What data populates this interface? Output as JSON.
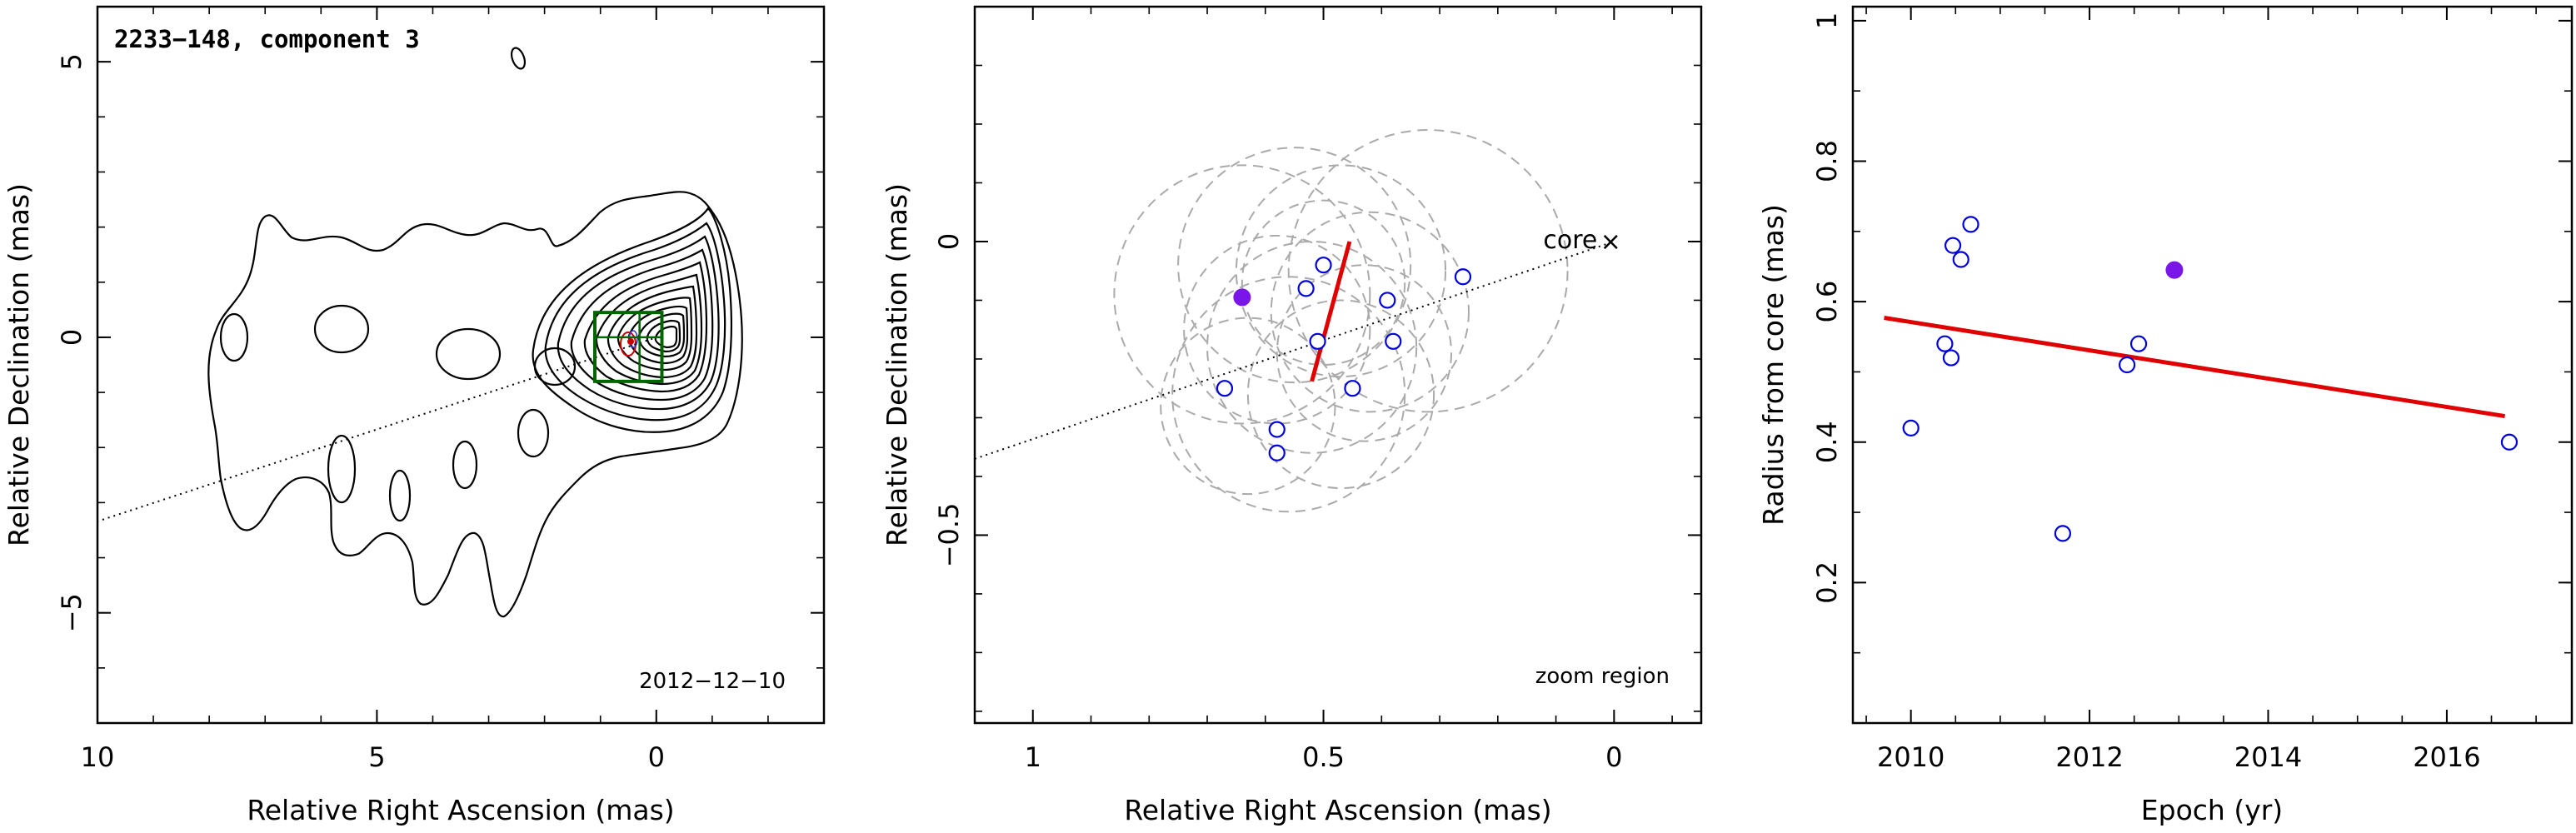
{
  "chart_data": [
    {
      "type": "contour",
      "title": "2233−148, component 3",
      "xlabel": "Relative Right Ascension (mas)",
      "ylabel": "Relative Declination (mas)",
      "xlim": [
        10,
        -3
      ],
      "ylim": [
        -7,
        6
      ],
      "x_ticks": [
        {
          "v": 10,
          "label": "10"
        },
        {
          "v": 5,
          "label": "5"
        },
        {
          "v": 0,
          "label": "0"
        }
      ],
      "y_ticks": [
        {
          "v": 5,
          "label": "5"
        },
        {
          "v": 0,
          "label": "0"
        },
        {
          "v": -5,
          "label": "−5"
        }
      ],
      "epoch_label": "2012−12−10",
      "jet_axis": {
        "x": [
          11.2,
          -0.1
        ],
        "y": [
          -3.74,
          0.03
        ],
        "style": "dotted"
      },
      "zoom_box": {
        "x": [
          1.1,
          -0.1
        ],
        "y": [
          -0.8,
          0.45
        ],
        "color": "#006400"
      },
      "component": {
        "x": 0.55,
        "y": -0.1,
        "color": "#cc0000"
      },
      "core_region": {
        "x": 0.3,
        "y": 0.0
      },
      "contour_levels": 13
    },
    {
      "type": "scatter",
      "xlabel": "Relative Right Ascension (mas)",
      "ylabel": "Relative Declination (mas)",
      "xlim": [
        1.1,
        -0.15
      ],
      "ylim": [
        -0.82,
        0.4
      ],
      "x_ticks": [
        {
          "v": 1,
          "label": "1"
        },
        {
          "v": 0.5,
          "label": "0.5"
        },
        {
          "v": 0,
          "label": "0"
        }
      ],
      "y_ticks": [
        {
          "v": 0,
          "label": "0"
        },
        {
          "v": -0.5,
          "label": "−0.5"
        }
      ],
      "annotation": "zoom region",
      "core_label": "core",
      "core_marker": "×",
      "core_position": {
        "x": 0.0,
        "y": 0.0
      },
      "jet_axis": {
        "x": [
          1.1,
          0.0
        ],
        "y": [
          -0.37,
          0.0
        ],
        "style": "dotted"
      },
      "points_open": [
        {
          "x": 0.67,
          "y": -0.25
        },
        {
          "x": 0.58,
          "y": -0.32
        },
        {
          "x": 0.58,
          "y": -0.36
        },
        {
          "x": 0.53,
          "y": -0.08
        },
        {
          "x": 0.51,
          "y": -0.17
        },
        {
          "x": 0.5,
          "y": -0.04
        },
        {
          "x": 0.45,
          "y": -0.25
        },
        {
          "x": 0.39,
          "y": -0.1
        },
        {
          "x": 0.38,
          "y": -0.17
        },
        {
          "x": 0.26,
          "y": -0.06
        }
      ],
      "point_filled": {
        "x": 0.64,
        "y": -0.095
      },
      "point_color": "#0000dd",
      "filled_color": "#7b16e8",
      "error_circles": [
        {
          "x": 0.64,
          "y": -0.09,
          "r": 0.22
        },
        {
          "x": 0.55,
          "y": -0.04,
          "r": 0.2
        },
        {
          "x": 0.47,
          "y": -0.05,
          "r": 0.18
        },
        {
          "x": 0.42,
          "y": -0.12,
          "r": 0.17
        },
        {
          "x": 0.32,
          "y": -0.05,
          "r": 0.24
        },
        {
          "x": 0.63,
          "y": -0.28,
          "r": 0.15
        },
        {
          "x": 0.56,
          "y": -0.26,
          "r": 0.2
        },
        {
          "x": 0.52,
          "y": -0.18,
          "r": 0.18
        },
        {
          "x": 0.47,
          "y": -0.26,
          "r": 0.16
        },
        {
          "x": 0.43,
          "y": -0.19,
          "r": 0.15
        },
        {
          "x": 0.58,
          "y": -0.15,
          "r": 0.16
        },
        {
          "x": 0.5,
          "y": -0.07,
          "r": 0.14
        }
      ],
      "trend_line": {
        "x": [
          0.455,
          0.52
        ],
        "y": [
          0.0,
          -0.238
        ],
        "color": "#e00000"
      }
    },
    {
      "type": "scatter",
      "xlabel": "Epoch (yr)",
      "ylabel": "Radius from core (mas)",
      "xlim": [
        2009.35,
        2017.4
      ],
      "ylim": [
        0.0,
        1.02
      ],
      "x_ticks": [
        {
          "v": 2010,
          "label": "2010"
        },
        {
          "v": 2012,
          "label": "2012"
        },
        {
          "v": 2014,
          "label": "2014"
        },
        {
          "v": 2016,
          "label": "2016"
        }
      ],
      "y_ticks": [
        {
          "v": 0.2,
          "label": "0.2"
        },
        {
          "v": 0.4,
          "label": "0.4"
        },
        {
          "v": 0.6,
          "label": "0.6"
        },
        {
          "v": 0.8,
          "label": "0.8"
        },
        {
          "v": 1.0,
          "label": "1"
        }
      ],
      "points_open": [
        {
          "x": 2010.0,
          "y": 0.42
        },
        {
          "x": 2010.38,
          "y": 0.54
        },
        {
          "x": 2010.45,
          "y": 0.52
        },
        {
          "x": 2010.47,
          "y": 0.68
        },
        {
          "x": 2010.56,
          "y": 0.66
        },
        {
          "x": 2010.67,
          "y": 0.71
        },
        {
          "x": 2011.7,
          "y": 0.27
        },
        {
          "x": 2012.42,
          "y": 0.51
        },
        {
          "x": 2012.55,
          "y": 0.54
        },
        {
          "x": 2016.7,
          "y": 0.4
        }
      ],
      "point_filled": {
        "x": 2012.95,
        "y": 0.645
      },
      "fit_line": {
        "x": [
          2009.7,
          2016.65
        ],
        "y": [
          0.577,
          0.437
        ],
        "color": "#e00000"
      }
    }
  ]
}
